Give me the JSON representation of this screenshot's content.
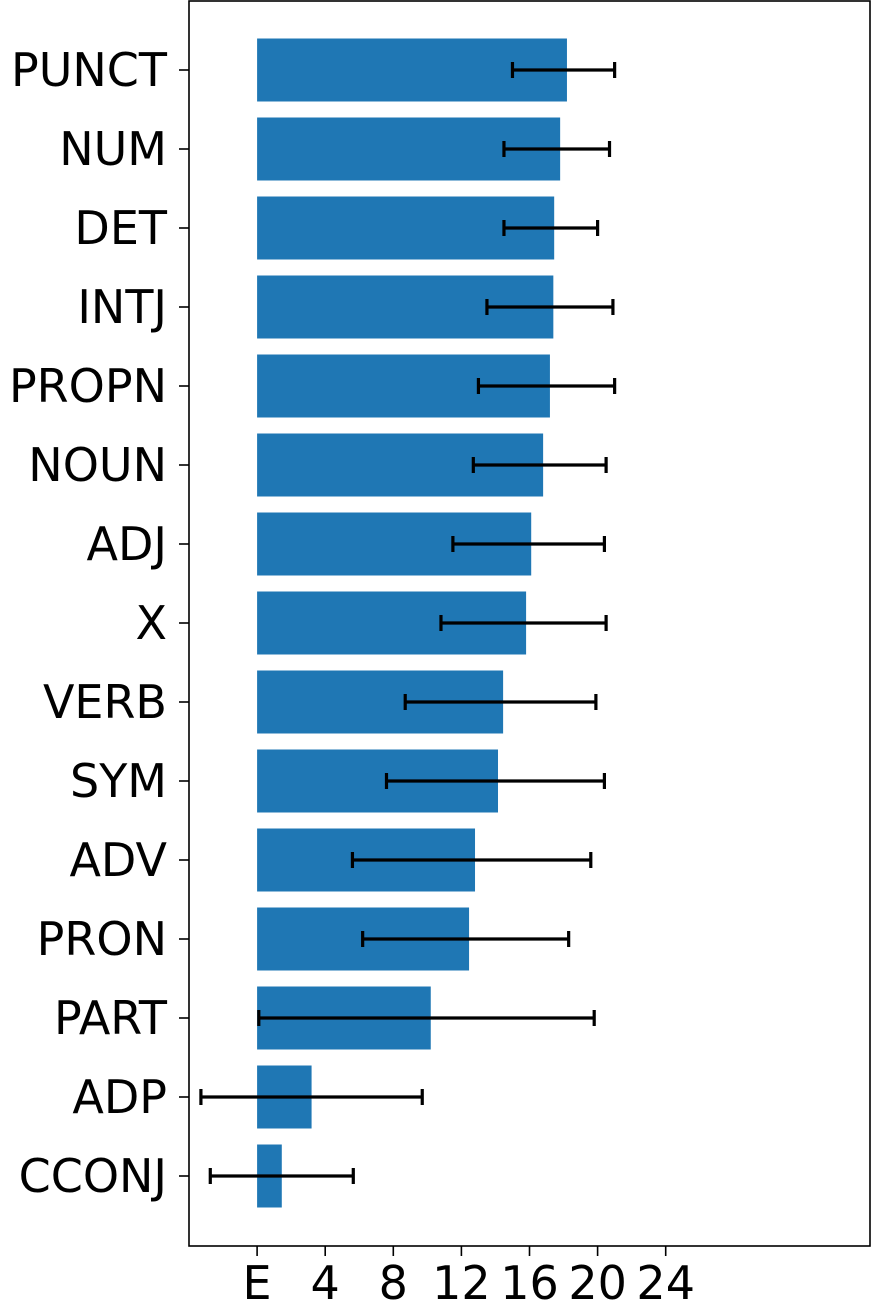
{
  "chart_data": {
    "type": "bar",
    "orientation": "horizontal",
    "categories": [
      "PUNCT",
      "NUM",
      "DET",
      "INTJ",
      "PROPN",
      "NOUN",
      "ADJ",
      "X",
      "VERB",
      "SYM",
      "ADV",
      "PRON",
      "PART",
      "ADP",
      "CCONJ"
    ],
    "values": [
      18.2,
      17.8,
      17.45,
      17.4,
      17.2,
      16.8,
      16.1,
      15.8,
      14.45,
      14.15,
      12.8,
      12.45,
      10.2,
      3.2,
      1.45
    ],
    "error_low": [
      15.0,
      14.5,
      14.5,
      13.5,
      13.0,
      12.7,
      11.5,
      10.8,
      8.7,
      7.6,
      5.6,
      6.2,
      0.1,
      -3.3,
      -2.75
    ],
    "error_high": [
      21.0,
      20.7,
      20.0,
      20.9,
      21.0,
      20.5,
      20.4,
      20.5,
      19.9,
      20.4,
      19.6,
      18.3,
      19.8,
      9.7,
      5.65
    ],
    "xlim": [
      -4,
      36
    ],
    "x_ticks": [
      0,
      4,
      8,
      12,
      16,
      20,
      24
    ],
    "x_tick_labels": [
      "E",
      "4",
      "8",
      "12",
      "16",
      "20",
      "24"
    ],
    "bar_color": "#1f77b4",
    "error_color": "#000000",
    "grid": false,
    "title": "",
    "xlabel": "",
    "ylabel": ""
  }
}
